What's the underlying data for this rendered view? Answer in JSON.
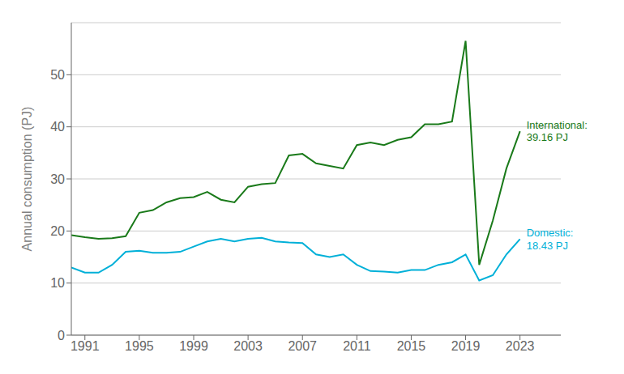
{
  "chart_data": {
    "type": "line",
    "ylabel": "Annual consumption (PJ)",
    "x": [
      1990,
      1991,
      1992,
      1993,
      1994,
      1995,
      1996,
      1997,
      1998,
      1999,
      2000,
      2001,
      2002,
      2003,
      2004,
      2005,
      2006,
      2007,
      2008,
      2009,
      2010,
      2011,
      2012,
      2013,
      2014,
      2015,
      2016,
      2017,
      2018,
      2019,
      2020,
      2021,
      2022,
      2023
    ],
    "series": [
      {
        "color": "#1a7a1a",
        "values": [
          19.2,
          18.8,
          18.5,
          18.6,
          19.0,
          23.5,
          24.0,
          25.5,
          26.3,
          26.5,
          27.5,
          26.0,
          25.5,
          28.5,
          29.0,
          29.2,
          34.5,
          34.8,
          33.0,
          32.5,
          32.0,
          36.5,
          37.0,
          36.5,
          37.5,
          38.0,
          40.5,
          40.5,
          41.0,
          56.5,
          13.5,
          22.0,
          32.0,
          39.16
        ]
      },
      {
        "color": "#00b0d8",
        "values": [
          13.0,
          12.0,
          12.0,
          13.5,
          16.0,
          16.2,
          15.8,
          15.8,
          16.0,
          17.0,
          18.0,
          18.5,
          18.0,
          18.5,
          18.7,
          18.0,
          17.8,
          17.7,
          15.5,
          15.0,
          15.5,
          13.5,
          12.3,
          12.2,
          12.0,
          12.5,
          12.5,
          13.5,
          14.0,
          15.5,
          10.5,
          11.5,
          15.5,
          18.43
        ]
      }
    ],
    "annotations": [
      "International:\n39.16 PJ",
      "Domestic:\n18.43 PJ"
    ],
    "xlim": [
      1990,
      2026
    ],
    "xticks": [
      1991,
      1995,
      1999,
      2003,
      2007,
      2011,
      2015,
      2019,
      2023
    ],
    "ylim": [
      0,
      60
    ],
    "yticks": [
      0,
      10,
      20,
      30,
      40,
      50
    ],
    "grid": "y"
  }
}
